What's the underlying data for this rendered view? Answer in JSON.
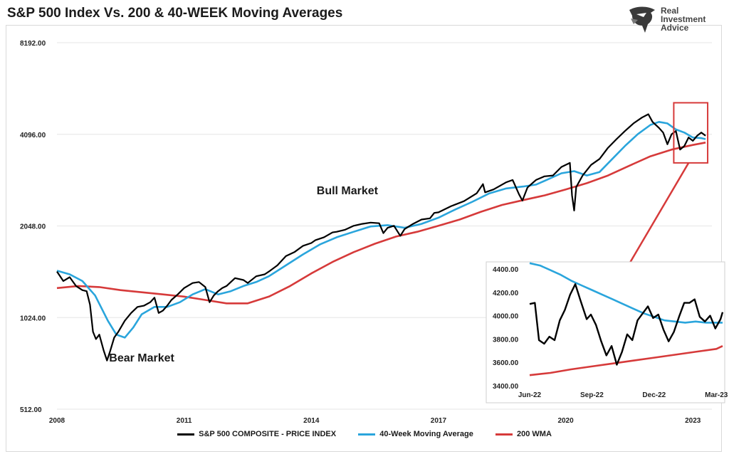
{
  "title": "S&P 500 Index Vs. 200 & 40-WEEK Moving Averages",
  "logo": {
    "line1": "Real",
    "line2": "Investment",
    "line3": "Advice",
    "icon": "eagle-head-icon"
  },
  "colors": {
    "price": "#000000",
    "ma40": "#2aa5dc",
    "wma200": "#d63a3a",
    "highlight": "#d63a3a"
  },
  "chart_data": [
    {
      "type": "line",
      "title": "S&P 500 Index Vs. 200 & 40-WEEK Moving Averages",
      "y_scale": "log2",
      "ylim": [
        512,
        8192
      ],
      "y_ticks": [
        "8192.00",
        "4096.00",
        "2048.00",
        "1024.00",
        "512.00"
      ],
      "y_tick_values": [
        8192,
        4096,
        2048,
        1024,
        512
      ],
      "x_ticks": [
        "2008",
        "2011",
        "2014",
        "2017",
        "2020",
        "2023"
      ],
      "x_tick_values": [
        2008,
        2011,
        2014,
        2017,
        2020,
        2023
      ],
      "xlim": [
        2008,
        2023.45
      ],
      "annotations": [
        {
          "text": "Bull Market",
          "x": 2014.85,
          "y": 2600
        },
        {
          "text": "Bear Market",
          "x": 2010.0,
          "y": 735
        }
      ],
      "series": [
        {
          "name": "S&P 500 COMPOSITE - PRICE INDEX",
          "x": [
            2008.0,
            2008.15,
            2008.3,
            2008.45,
            2008.6,
            2008.7,
            2008.78,
            2008.85,
            2008.92,
            2009.0,
            2009.1,
            2009.18,
            2009.25,
            2009.35,
            2009.45,
            2009.6,
            2009.75,
            2009.9,
            2010.05,
            2010.2,
            2010.3,
            2010.4,
            2010.5,
            2010.6,
            2010.7,
            2010.85,
            2011.0,
            2011.2,
            2011.35,
            2011.5,
            2011.6,
            2011.7,
            2011.8,
            2011.9,
            2012.0,
            2012.2,
            2012.4,
            2012.5,
            2012.7,
            2012.9,
            2013.0,
            2013.2,
            2013.4,
            2013.6,
            2013.8,
            2014.0,
            2014.1,
            2014.3,
            2014.5,
            2014.6,
            2014.8,
            2015.0,
            2015.2,
            2015.4,
            2015.6,
            2015.7,
            2015.8,
            2015.95,
            2016.1,
            2016.2,
            2016.4,
            2016.6,
            2016.8,
            2016.9,
            2017.0,
            2017.3,
            2017.6,
            2017.9,
            2018.05,
            2018.1,
            2018.3,
            2018.6,
            2018.75,
            2018.9,
            2018.98,
            2019.1,
            2019.3,
            2019.5,
            2019.7,
            2019.9,
            2020.1,
            2020.15,
            2020.2,
            2020.25,
            2020.4,
            2020.6,
            2020.8,
            2021.0,
            2021.2,
            2021.4,
            2021.6,
            2021.8,
            2021.95,
            2022.05,
            2022.2,
            2022.3,
            2022.4,
            2022.5,
            2022.6,
            2022.7,
            2022.8,
            2022.9,
            2023.0,
            2023.1,
            2023.2,
            2023.3
          ],
          "y": [
            1450,
            1350,
            1390,
            1300,
            1260,
            1250,
            1130,
            920,
            870,
            900,
            800,
            740,
            790,
            880,
            920,
            1000,
            1060,
            1110,
            1120,
            1150,
            1190,
            1060,
            1080,
            1120,
            1170,
            1220,
            1280,
            1330,
            1340,
            1290,
            1150,
            1210,
            1250,
            1280,
            1300,
            1380,
            1360,
            1330,
            1400,
            1420,
            1450,
            1520,
            1630,
            1680,
            1760,
            1800,
            1840,
            1880,
            1950,
            1960,
            1990,
            2050,
            2080,
            2100,
            2090,
            1940,
            2020,
            2050,
            1900,
            2000,
            2080,
            2150,
            2170,
            2260,
            2270,
            2380,
            2470,
            2620,
            2810,
            2640,
            2700,
            2850,
            2900,
            2600,
            2480,
            2740,
            2900,
            2980,
            3000,
            3200,
            3300,
            2580,
            2300,
            2750,
            3000,
            3250,
            3400,
            3700,
            3950,
            4200,
            4450,
            4650,
            4770,
            4500,
            4300,
            4150,
            3800,
            4100,
            4200,
            3650,
            3750,
            4000,
            3900,
            4050,
            4150,
            4050
          ]
        },
        {
          "name": "40-Week Moving Average",
          "x": [
            2008.0,
            2008.3,
            2008.6,
            2008.9,
            2009.2,
            2009.4,
            2009.6,
            2009.8,
            2010.0,
            2010.3,
            2010.6,
            2010.9,
            2011.2,
            2011.5,
            2011.8,
            2012.1,
            2012.4,
            2012.7,
            2013.0,
            2013.4,
            2013.8,
            2014.2,
            2014.6,
            2015.0,
            2015.4,
            2015.8,
            2016.2,
            2016.6,
            2017.0,
            2017.4,
            2017.8,
            2018.2,
            2018.6,
            2019.0,
            2019.3,
            2019.6,
            2019.9,
            2020.2,
            2020.5,
            2020.8,
            2021.1,
            2021.4,
            2021.7,
            2022.0,
            2022.2,
            2022.4,
            2022.6,
            2022.8,
            2023.0,
            2023.2,
            2023.3
          ],
          "y": [
            1460,
            1420,
            1350,
            1210,
            1000,
            900,
            880,
            950,
            1050,
            1110,
            1110,
            1150,
            1220,
            1270,
            1220,
            1250,
            1300,
            1340,
            1400,
            1520,
            1650,
            1780,
            1880,
            1960,
            2040,
            2060,
            2020,
            2080,
            2180,
            2320,
            2460,
            2620,
            2720,
            2760,
            2800,
            2920,
            3050,
            3100,
            3000,
            3080,
            3400,
            3750,
            4100,
            4400,
            4500,
            4450,
            4250,
            4150,
            4000,
            3980,
            3950
          ]
        },
        {
          "name": "200 WMA",
          "x": [
            2008.0,
            2008.5,
            2009.0,
            2009.5,
            2010.0,
            2010.5,
            2011.0,
            2011.5,
            2012.0,
            2012.5,
            2013.0,
            2013.5,
            2014.0,
            2014.5,
            2015.0,
            2015.5,
            2016.0,
            2016.5,
            2017.0,
            2017.5,
            2018.0,
            2018.5,
            2019.0,
            2019.5,
            2020.0,
            2020.5,
            2021.0,
            2021.5,
            2022.0,
            2022.5,
            2023.0,
            2023.3
          ],
          "y": [
            1280,
            1300,
            1290,
            1260,
            1240,
            1220,
            1200,
            1170,
            1140,
            1140,
            1200,
            1300,
            1430,
            1560,
            1680,
            1790,
            1890,
            1960,
            2050,
            2150,
            2280,
            2400,
            2490,
            2580,
            2700,
            2830,
            3000,
            3230,
            3470,
            3650,
            3780,
            3850
          ]
        }
      ]
    },
    {
      "type": "line",
      "inset": true,
      "ylim": [
        3400,
        4400
      ],
      "y_ticks": [
        "4400.00",
        "4200.00",
        "4000.00",
        "3800.00",
        "3600.00",
        "3400.00"
      ],
      "y_tick_values": [
        4400,
        4200,
        4000,
        3800,
        3600,
        3400
      ],
      "x_ticks": [
        "Jun-22",
        "Sep-22",
        "Dec-22",
        "Mar-23"
      ],
      "x_tick_values": [
        0,
        3,
        6,
        9
      ],
      "xlim": [
        0,
        9.3
      ],
      "series": [
        {
          "name": "S&P 500 COMPOSITE - PRICE INDEX",
          "x": [
            0,
            0.25,
            0.45,
            0.7,
            0.95,
            1.2,
            1.45,
            1.7,
            1.95,
            2.2,
            2.45,
            2.75,
            2.95,
            3.2,
            3.45,
            3.7,
            3.95,
            4.2,
            4.45,
            4.7,
            4.95,
            5.2,
            5.45,
            5.7,
            5.95,
            6.2,
            6.45,
            6.7,
            6.95,
            7.2,
            7.45,
            7.7,
            7.95,
            8.2,
            8.45,
            8.7,
            8.95,
            9.2,
            9.3
          ],
          "y": [
            4100,
            4110,
            3790,
            3760,
            3820,
            3790,
            3960,
            4050,
            4180,
            4270,
            4130,
            3970,
            4010,
            3920,
            3780,
            3660,
            3740,
            3580,
            3690,
            3840,
            3790,
            3960,
            4020,
            4080,
            3980,
            4010,
            3880,
            3780,
            3860,
            3990,
            4110,
            4110,
            4140,
            3990,
            3950,
            4000,
            3890,
            3970,
            4030
          ]
        },
        {
          "name": "40-Week Moving Average",
          "x": [
            0,
            0.5,
            1.0,
            1.5,
            2.0,
            2.5,
            3.0,
            3.5,
            4.0,
            4.5,
            5.0,
            5.5,
            6.0,
            6.5,
            7.0,
            7.5,
            8.0,
            8.5,
            9.0,
            9.3
          ],
          "y": [
            4450,
            4430,
            4390,
            4350,
            4300,
            4260,
            4220,
            4180,
            4140,
            4100,
            4060,
            4020,
            3990,
            3960,
            3950,
            3940,
            3950,
            3940,
            3940,
            3940
          ]
        },
        {
          "name": "200 WMA",
          "x": [
            0,
            1,
            2,
            3,
            4,
            5,
            6,
            7,
            8,
            9,
            9.3
          ],
          "y": [
            3490,
            3510,
            3540,
            3565,
            3590,
            3615,
            3640,
            3665,
            3690,
            3715,
            3740
          ]
        }
      ]
    }
  ],
  "legend": [
    {
      "label": "S&P 500 COMPOSITE - PRICE INDEX"
    },
    {
      "label": "40-Week Moving Average"
    },
    {
      "label": "200 WMA"
    }
  ]
}
